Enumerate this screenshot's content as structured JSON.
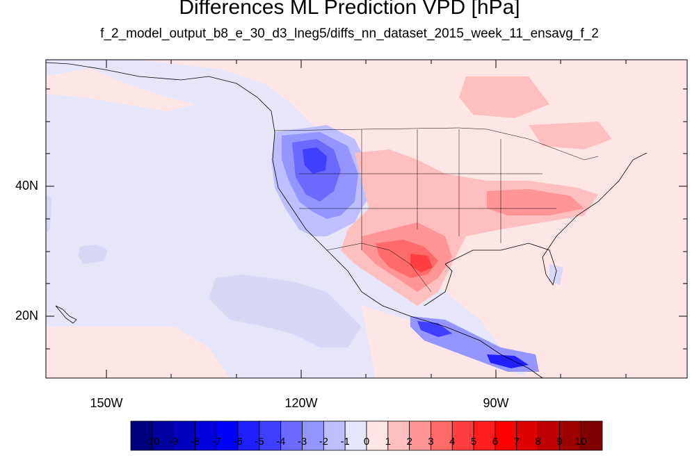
{
  "title": "Differences ML Prediction VPD [hPa]",
  "subtitle": "f_2_model_output_b8_e_30_d3_lneg5/diffs_nn_dataset_2015_week_11_ensavg_f_2",
  "lat_labels": [
    "40N",
    "20N"
  ],
  "lon_labels": [
    "150W",
    "120W",
    "90W"
  ],
  "colorbar": {
    "labels": [
      "-10",
      "-9",
      "-8",
      "-7",
      "-6",
      "-5",
      "-4",
      "-3",
      "-2",
      "-1",
      "0",
      "1",
      "2",
      "3",
      "4",
      "5",
      "6",
      "7",
      "8",
      "9",
      "10"
    ],
    "colors": [
      "#00007f",
      "#00009f",
      "#0000bf",
      "#0000df",
      "#0000ff",
      "#1f1fff",
      "#3f3fff",
      "#6a6aff",
      "#9595ff",
      "#bfbfff",
      "#e5e5fb",
      "#ffe5e5",
      "#ffbfbf",
      "#ff9595",
      "#ff6a6a",
      "#ff3f3f",
      "#ff1f1f",
      "#ff0000",
      "#df0000",
      "#bf0000",
      "#9f0000",
      "#7f0000"
    ]
  },
  "colors": {
    "ocean_blue": "#e6e6f8",
    "land_pink": "#ffe6e6"
  }
}
